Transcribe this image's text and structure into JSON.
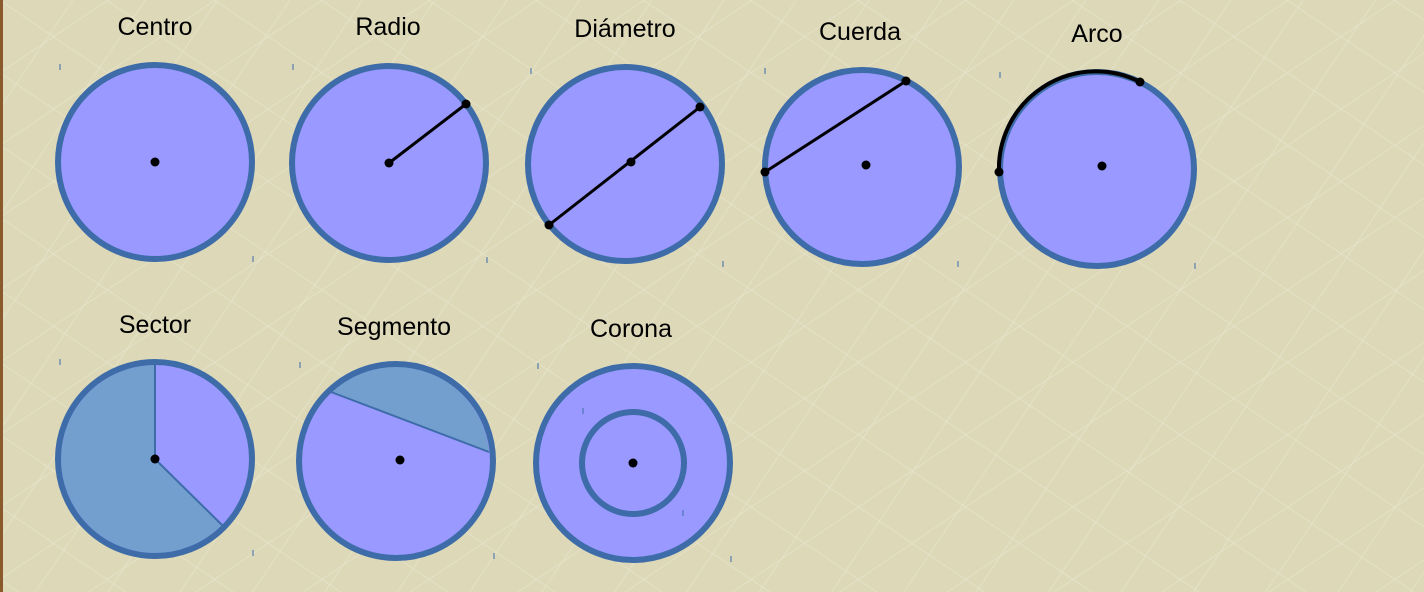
{
  "labels": {
    "centro": "Centro",
    "radio": "Radio",
    "diametro": "Diámetro",
    "cuerda": "Cuerda",
    "arco": "Arco",
    "sector": "Sector",
    "segmento": "Segmento",
    "corona": "Corona"
  },
  "colors": {
    "background": "#dcd8b8",
    "grid": "#e8e4cc",
    "fill": "#9999ff",
    "shaded": "#739fcf",
    "stroke": "#3e6ca8",
    "ink": "#000000",
    "left_border": "#8b5a2b"
  }
}
